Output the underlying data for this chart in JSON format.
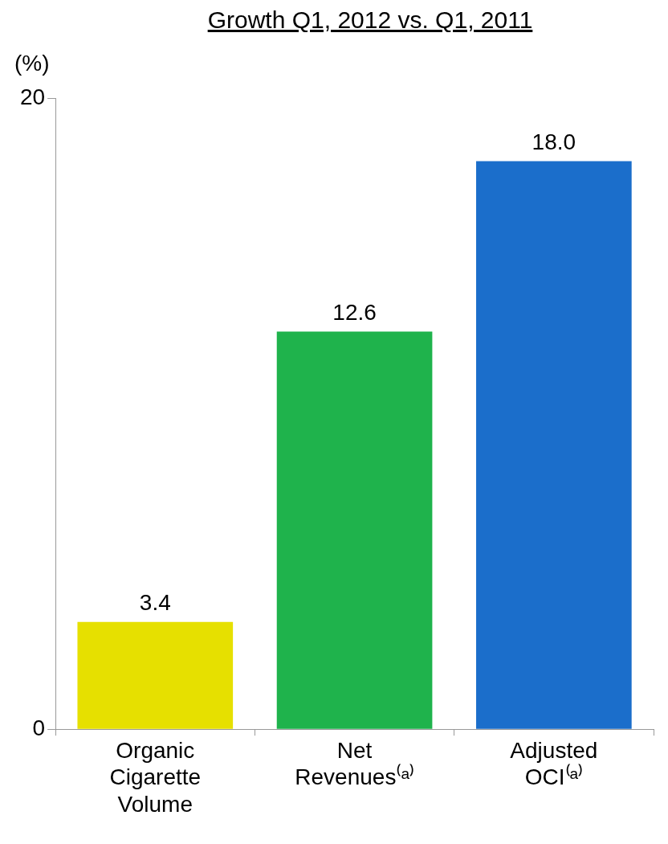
{
  "chart_data": {
    "type": "bar",
    "title": "Growth Q1, 2012 vs. Q1, 2011",
    "ylabel": "(%)",
    "categories": [
      "Organic Cigarette Volume",
      "Net Revenues⁽ᵃ⁾",
      "Adjusted OCI⁽ᵃ⁾"
    ],
    "values": [
      3.4,
      12.6,
      18.0
    ],
    "colors": [
      "#e6e000",
      "#1fb34c",
      "#1b6ecb"
    ],
    "value_labels": [
      "3.4",
      "12.6",
      "18.0"
    ],
    "ylim": [
      0,
      20
    ],
    "yticks": [
      0,
      20
    ],
    "grid": false,
    "legend": false
  }
}
